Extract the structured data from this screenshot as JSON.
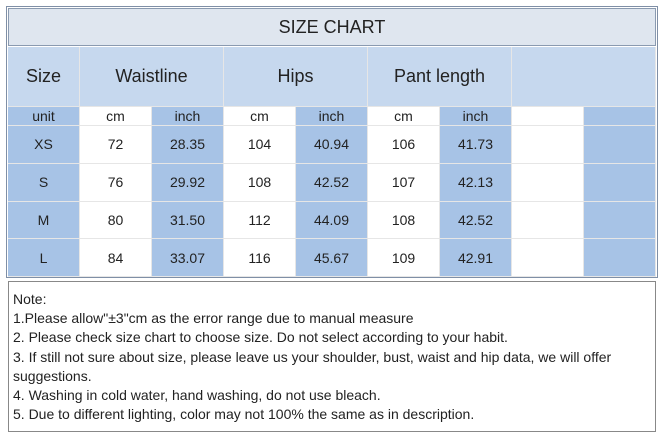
{
  "title": "SIZE CHART",
  "table": {
    "header": [
      "Size",
      "Waistline",
      "Hips",
      "Pant length"
    ],
    "units": [
      "unit",
      "cm",
      "inch",
      "cm",
      "inch",
      "cm",
      "inch"
    ],
    "rows": [
      [
        "XS",
        "72",
        "28.35",
        "104",
        "40.94",
        "106",
        "41.73"
      ],
      [
        "S",
        "76",
        "29.92",
        "108",
        "42.52",
        "107",
        "42.13"
      ],
      [
        "M",
        "80",
        "31.50",
        "112",
        "44.09",
        "108",
        "42.52"
      ],
      [
        "L",
        "84",
        "33.07",
        "116",
        "45.67",
        "109",
        "42.91"
      ]
    ]
  },
  "notes": {
    "heading": "Note:",
    "lines": [
      "1.Please allow\"±3\"cm as the error range due to manual measure",
      "2. Please check size chart to choose size. Do not select according to your habit.",
      "3. If still not sure about size, please leave us your shoulder, bust, waist and hip data, we will offer suggestions.",
      "4. Washing in cold water, hand washing, do not use bleach.",
      "5. Due to different lighting, color may not 100% the same as in description."
    ]
  }
}
